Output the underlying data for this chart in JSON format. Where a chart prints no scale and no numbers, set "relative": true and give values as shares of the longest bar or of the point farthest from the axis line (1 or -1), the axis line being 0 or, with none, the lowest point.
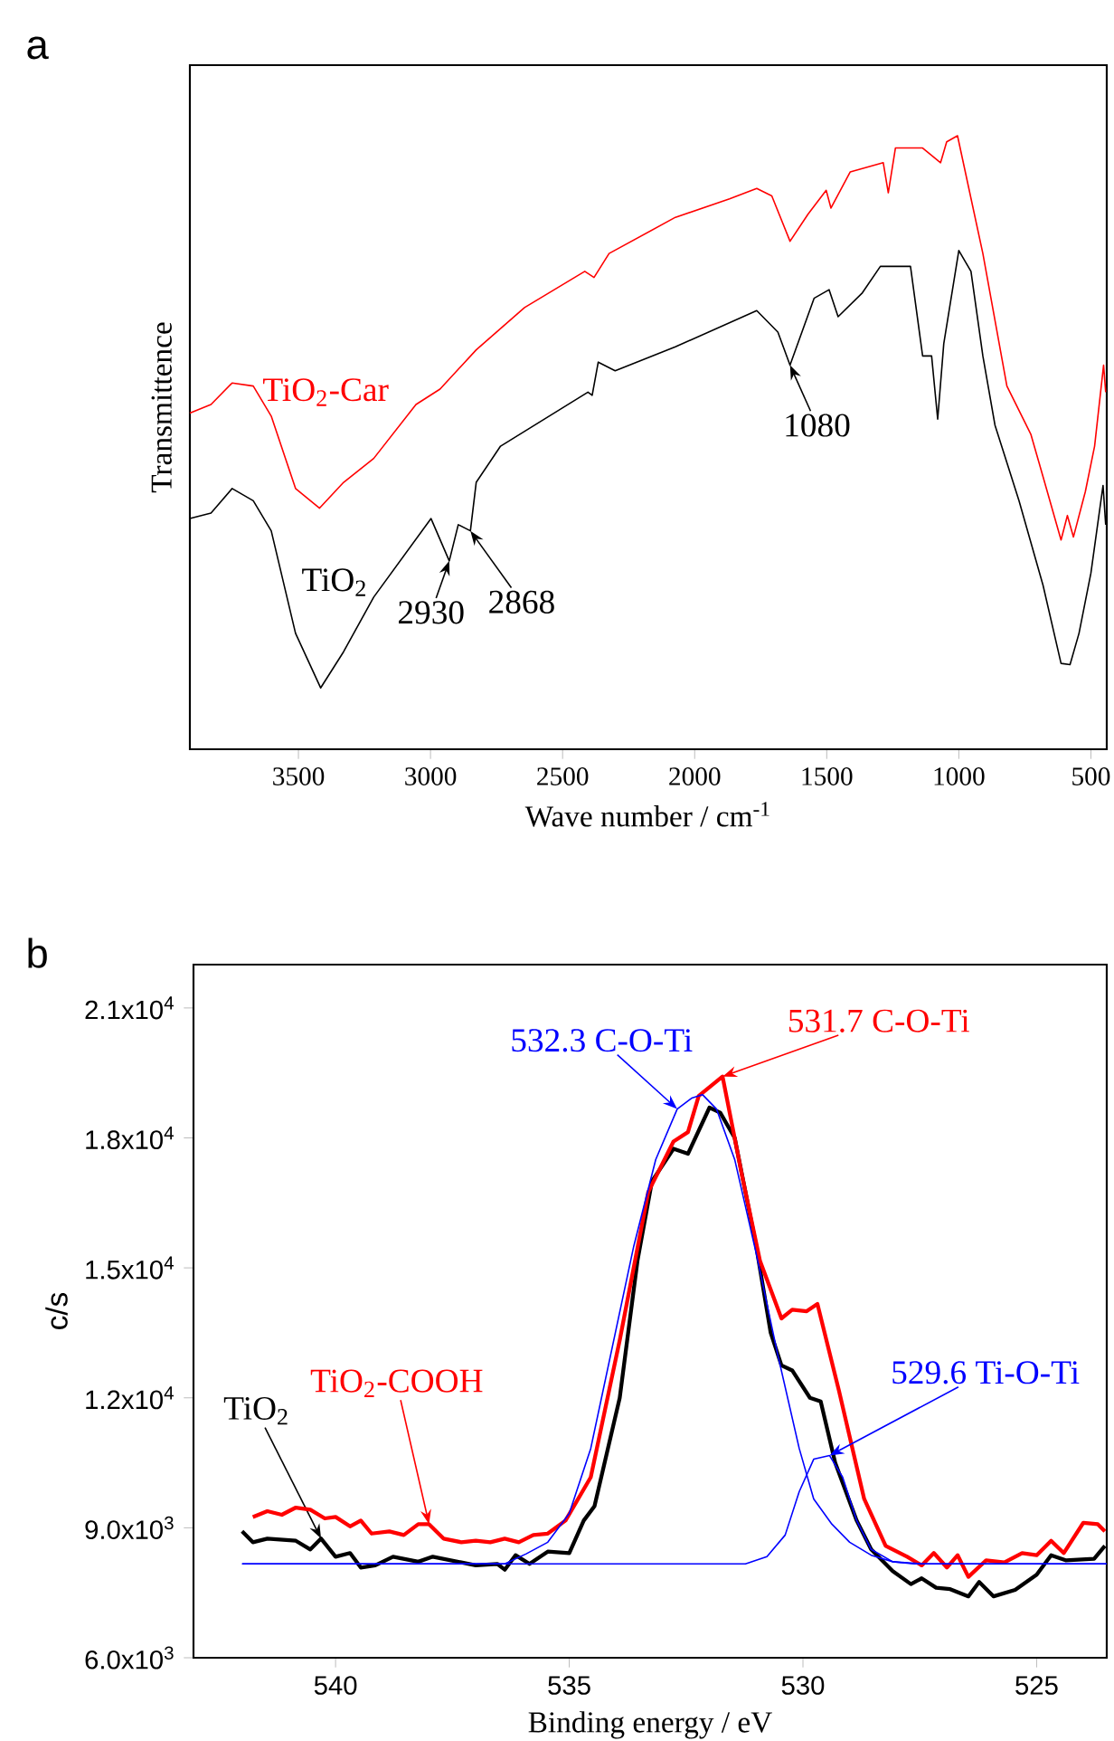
{
  "chart_data": [
    {
      "type": "line",
      "title": "a",
      "xlabel": "Wave number / cm$^{-1}$",
      "ylabel": "Transmittence",
      "relative": true,
      "xlim": [
        3911,
        440
      ],
      "xticks": [
        3500,
        3000,
        2500,
        2000,
        1500,
        1000,
        500
      ],
      "series": [
        {
          "name": "TiO$_{2}$-Car",
          "color": "#ff0000",
          "x": [
            3911,
            3831,
            3751,
            3671,
            3603,
            3511,
            3420,
            3329,
            3215,
            3055,
            2964,
            2827,
            2644,
            2416,
            2381,
            2324,
            2073,
            1868,
            1765,
            1708,
            1639,
            1571,
            1502,
            1484,
            1411,
            1286,
            1267,
            1240,
            1137,
            1069,
            1046,
            1005,
            909,
            818,
            727,
            681,
            613,
            589,
            566,
            521,
            486,
            452,
            444
          ],
          "values": [
            0.548,
            0.562,
            0.597,
            0.592,
            0.543,
            0.425,
            0.393,
            0.435,
            0.474,
            0.562,
            0.587,
            0.651,
            0.72,
            0.779,
            0.769,
            0.808,
            0.867,
            0.897,
            0.914,
            0.902,
            0.828,
            0.872,
            0.911,
            0.882,
            0.941,
            0.956,
            0.907,
            0.98,
            0.98,
            0.956,
            0.99,
            1.0,
            0.808,
            0.592,
            0.513,
            0.444,
            0.341,
            0.381,
            0.346,
            0.42,
            0.494,
            0.626,
            0.582
          ]
        },
        {
          "name": "TiO$_{2}$",
          "color": "#000000",
          "x": [
            3911,
            3831,
            3751,
            3671,
            3603,
            3511,
            3416,
            3329,
            3215,
            2998,
            2929,
            2895,
            2849,
            2827,
            2735,
            2404,
            2388,
            2365,
            2301,
            2073,
            1765,
            1685,
            1639,
            1548,
            1491,
            1457,
            1365,
            1297,
            1183,
            1137,
            1103,
            1080,
            1057,
            1000,
            954,
            909,
            863,
            772,
            681,
            613,
            579,
            545,
            500,
            454,
            444
          ],
          "values": [
            0.376,
            0.385,
            0.425,
            0.405,
            0.356,
            0.189,
            0.1,
            0.159,
            0.248,
            0.376,
            0.307,
            0.366,
            0.356,
            0.435,
            0.494,
            0.582,
            0.577,
            0.631,
            0.617,
            0.656,
            0.715,
            0.68,
            0.626,
            0.735,
            0.749,
            0.705,
            0.744,
            0.787,
            0.787,
            0.641,
            0.641,
            0.538,
            0.661,
            0.813,
            0.779,
            0.641,
            0.528,
            0.405,
            0.267,
            0.14,
            0.138,
            0.189,
            0.287,
            0.43,
            0.366
          ]
        }
      ],
      "annotations": [
        {
          "text": "2930",
          "x": 2929,
          "y": 0.307
        },
        {
          "text": "2868",
          "x": 2849,
          "y": 0.356
        },
        {
          "text": "1080",
          "x": 1639,
          "y": 0.626
        }
      ]
    },
    {
      "type": "line",
      "title": "b",
      "xlabel": "Binding energy / eV",
      "ylabel": "c/s",
      "xlim": [
        543.04,
        523.5
      ],
      "xticks": [
        540,
        535,
        530,
        525
      ],
      "ylim": [
        6000,
        22000
      ],
      "yticks": [
        {
          "value": 6000,
          "label": "6.0x10$^{3}$"
        },
        {
          "value": 9000,
          "label": "9.0x10$^{3}$"
        },
        {
          "value": 12000,
          "label": "1.2x10$^{4}$"
        },
        {
          "value": 15000,
          "label": "1.5x10$^{4}$"
        },
        {
          "value": 18000,
          "label": "1.8x10$^{4}$"
        },
        {
          "value": 21000,
          "label": "2.1x10$^{4}$"
        }
      ],
      "series": [
        {
          "name": "TiO$_{2}$",
          "color": "#000000",
          "x": [
            542.0,
            541.77,
            541.46,
            540.85,
            540.54,
            540.31,
            540.0,
            539.69,
            539.46,
            539.15,
            538.77,
            538.23,
            537.92,
            537.31,
            537.0,
            536.54,
            536.38,
            536.15,
            535.85,
            535.46,
            535.0,
            534.69,
            534.46,
            533.92,
            533.54,
            533.23,
            532.77,
            532.46,
            532.0,
            531.77,
            531.46,
            531.0,
            530.69,
            530.46,
            530.23,
            529.85,
            529.62,
            529.31,
            528.85,
            528.54,
            528.08,
            527.69,
            527.46,
            527.15,
            526.85,
            526.46,
            526.23,
            525.92,
            525.46,
            525.0,
            524.69,
            524.38,
            523.77,
            523.54
          ],
          "values": [
            8917,
            8667,
            8750,
            8700,
            8500,
            8750,
            8333,
            8417,
            8083,
            8133,
            8333,
            8217,
            8333,
            8200,
            8133,
            8167,
            8033,
            8367,
            8167,
            8450,
            8417,
            9167,
            9500,
            12000,
            15167,
            17000,
            17750,
            17633,
            18700,
            18583,
            18000,
            15500,
            13500,
            12750,
            12633,
            12000,
            11917,
            10500,
            9167,
            8500,
            8000,
            7700,
            7833,
            7617,
            7583,
            7417,
            7750,
            7417,
            7567,
            7917,
            8367,
            8250,
            8283,
            8583
          ]
        },
        {
          "name": "TiO$_{2}$-COOH",
          "color": "#ff0000",
          "x": [
            541.77,
            541.46,
            541.15,
            540.85,
            540.54,
            540.23,
            540.0,
            539.69,
            539.46,
            539.23,
            538.85,
            538.54,
            538.23,
            538.0,
            537.69,
            537.31,
            537.0,
            536.69,
            536.38,
            536.08,
            535.77,
            535.46,
            535.08,
            534.54,
            533.92,
            533.31,
            532.77,
            532.46,
            532.23,
            531.72,
            531.31,
            530.92,
            530.46,
            530.23,
            529.92,
            529.69,
            529.23,
            528.69,
            528.23,
            527.77,
            527.46,
            527.2,
            526.92,
            526.69,
            526.46,
            526.08,
            525.69,
            525.31,
            525.0,
            524.69,
            524.42,
            524.0,
            523.69,
            523.54
          ],
          "values": [
            9250,
            9383,
            9300,
            9467,
            9417,
            9217,
            9250,
            9033,
            9167,
            8867,
            8917,
            8833,
            9083,
            9083,
            8750,
            8667,
            8700,
            8667,
            8750,
            8667,
            8833,
            8867,
            9167,
            10167,
            13333,
            16750,
            17917,
            18133,
            18967,
            19417,
            17167,
            15167,
            13833,
            14033,
            14000,
            14167,
            12167,
            9667,
            8583,
            8333,
            8133,
            8417,
            8083,
            8367,
            7867,
            8250,
            8200,
            8417,
            8367,
            8700,
            8417,
            9117,
            9083,
            8917
          ]
        },
        {
          "name": "532.3 C-O-Ti",
          "color": "#0000ff",
          "x": [
            542.0,
            536.38,
            535.92,
            535.46,
            535.0,
            534.54,
            534.08,
            533.62,
            533.15,
            532.69,
            532.38,
            532.15,
            531.85,
            531.46,
            531.0,
            530.54,
            530.08,
            529.77,
            529.38,
            529.0,
            528.54,
            528.08,
            527.46,
            523.5
          ],
          "values": [
            8167,
            8167,
            8400,
            8667,
            9333,
            10833,
            13167,
            15500,
            17500,
            18667,
            18917,
            19000,
            18667,
            17500,
            15333,
            13000,
            10833,
            9667,
            9083,
            8667,
            8367,
            8217,
            8167,
            8167
          ]
        },
        {
          "name": "529.6 Ti-O-Ti",
          "color": "#0000ff",
          "x": [
            542.0,
            531.23,
            530.77,
            530.38,
            530.08,
            529.77,
            529.43,
            529.15,
            528.85,
            528.54,
            528.08,
            527.62,
            523.5
          ],
          "values": [
            8167,
            8167,
            8333,
            8833,
            9833,
            10583,
            10667,
            10167,
            9167,
            8500,
            8217,
            8167,
            8167
          ]
        }
      ],
      "annotations": [
        {
          "text": "531.7 C-O-Ti",
          "x": 531.72,
          "y": 19417
        }
      ]
    }
  ]
}
